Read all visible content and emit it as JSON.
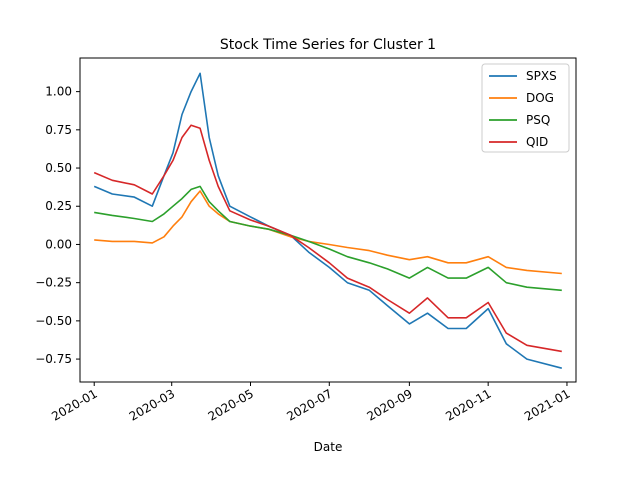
{
  "chart_data": {
    "type": "line",
    "title": "Stock Time Series for Cluster 1",
    "xlabel": "Date",
    "ylabel": "",
    "x_range": [
      "2019-12-21",
      "2021-01-08"
    ],
    "ylim": [
      -0.9,
      1.22
    ],
    "y_ticks": [
      1.0,
      0.75,
      0.5,
      0.25,
      0.0,
      -0.25,
      -0.5,
      -0.75
    ],
    "y_tick_labels": [
      "1.00",
      "0.75",
      "0.50",
      "0.25",
      "0.00",
      "−0.25",
      "−0.50",
      "−0.75"
    ],
    "x_ticks": [
      "2020-01-01",
      "2020-03-01",
      "2020-05-01",
      "2020-07-01",
      "2020-09-01",
      "2020-11-01",
      "2021-01-01"
    ],
    "x_tick_labels": [
      "2020-01",
      "2020-03",
      "2020-05",
      "2020-07",
      "2020-09",
      "2020-11",
      "2021-01"
    ],
    "grid": false,
    "legend_position": "top-right",
    "x": [
      "2020-01-01",
      "2020-01-15",
      "2020-02-01",
      "2020-02-15",
      "2020-02-24",
      "2020-03-02",
      "2020-03-09",
      "2020-03-16",
      "2020-03-23",
      "2020-03-30",
      "2020-04-06",
      "2020-04-15",
      "2020-05-01",
      "2020-05-15",
      "2020-06-01",
      "2020-06-15",
      "2020-07-01",
      "2020-07-15",
      "2020-08-01",
      "2020-08-15",
      "2020-09-01",
      "2020-09-15",
      "2020-10-01",
      "2020-10-15",
      "2020-11-01",
      "2020-11-15",
      "2020-12-01",
      "2020-12-28"
    ],
    "series": [
      {
        "name": "SPXS",
        "color": "#1f77b4",
        "values": [
          0.38,
          0.33,
          0.31,
          0.25,
          0.45,
          0.6,
          0.85,
          1.0,
          1.12,
          0.7,
          0.45,
          0.25,
          0.18,
          0.12,
          0.06,
          -0.05,
          -0.15,
          -0.25,
          -0.3,
          -0.4,
          -0.52,
          -0.45,
          -0.55,
          -0.55,
          -0.42,
          -0.65,
          -0.75,
          -0.81
        ]
      },
      {
        "name": "DOG",
        "color": "#ff7f0e",
        "values": [
          0.03,
          0.02,
          0.02,
          0.01,
          0.05,
          0.12,
          0.18,
          0.28,
          0.35,
          0.25,
          0.2,
          0.15,
          0.12,
          0.1,
          0.05,
          0.02,
          0.0,
          -0.02,
          -0.04,
          -0.07,
          -0.1,
          -0.08,
          -0.12,
          -0.12,
          -0.08,
          -0.15,
          -0.17,
          -0.19
        ]
      },
      {
        "name": "PSQ",
        "color": "#2ca02c",
        "values": [
          0.21,
          0.19,
          0.17,
          0.15,
          0.2,
          0.25,
          0.3,
          0.36,
          0.38,
          0.28,
          0.22,
          0.15,
          0.12,
          0.1,
          0.06,
          0.02,
          -0.03,
          -0.08,
          -0.12,
          -0.16,
          -0.22,
          -0.15,
          -0.22,
          -0.22,
          -0.15,
          -0.25,
          -0.28,
          -0.3
        ]
      },
      {
        "name": "QID",
        "color": "#d62728",
        "values": [
          0.47,
          0.42,
          0.39,
          0.33,
          0.45,
          0.55,
          0.7,
          0.78,
          0.76,
          0.55,
          0.38,
          0.22,
          0.16,
          0.12,
          0.06,
          -0.02,
          -0.12,
          -0.22,
          -0.28,
          -0.36,
          -0.45,
          -0.35,
          -0.48,
          -0.48,
          -0.38,
          -0.58,
          -0.66,
          -0.7
        ]
      }
    ]
  }
}
